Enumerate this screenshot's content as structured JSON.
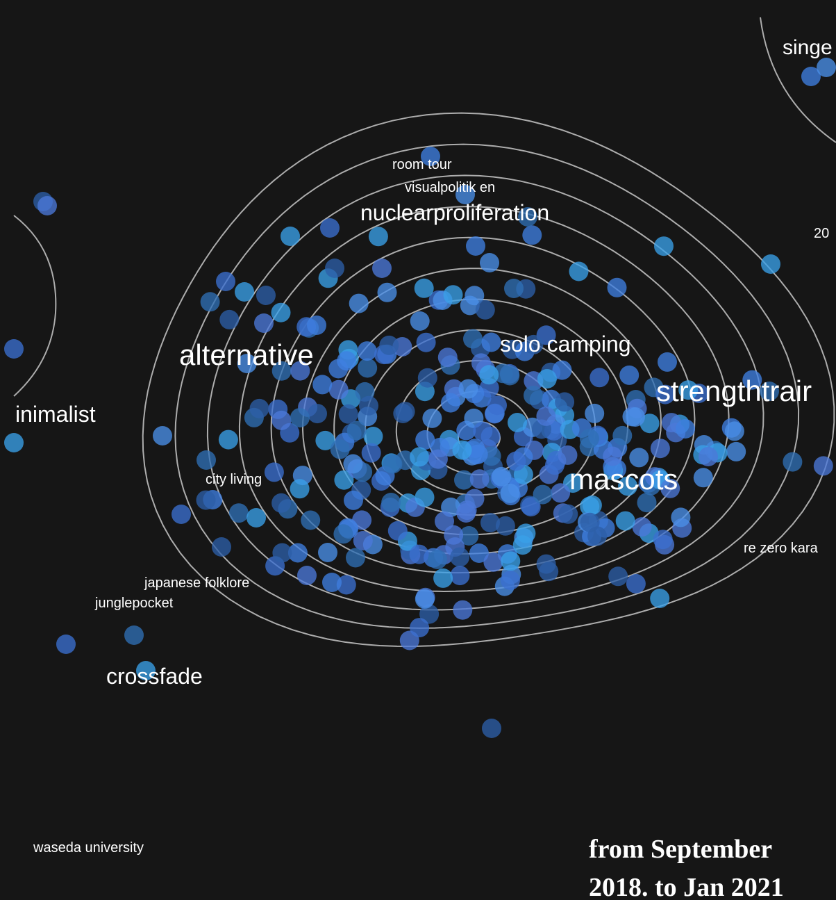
{
  "labels": [
    "singe",
    "room tour",
    "visualpolitik en",
    "nuclearproliferation",
    "20",
    "alternative",
    "solo camping",
    "strengthtrair",
    "inimalist",
    "city living",
    "mascots",
    "re zero kara",
    "japanese folklore",
    "junglepocket",
    "crossfade",
    "waseda university"
  ],
  "caption": [
    "from September",
    "2018. to Jan 2021"
  ]
}
